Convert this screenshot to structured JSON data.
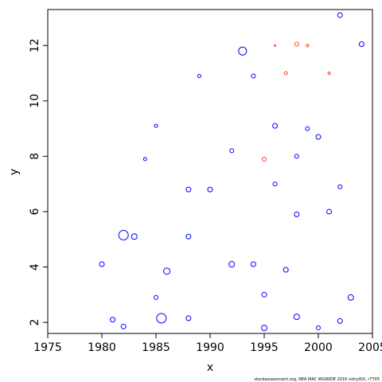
{
  "chart_data": {
    "type": "scatter",
    "title": "",
    "xlabel": "x",
    "ylabel": "y",
    "xlim": [
      1975,
      2005
    ],
    "ylim": [
      1.6,
      13.3
    ],
    "xticks": [
      1975,
      1980,
      1985,
      1990,
      1995,
      2000,
      2005
    ],
    "yticks": [
      2,
      4,
      6,
      8,
      10,
      12
    ],
    "grid": false,
    "legend": "none",
    "caption": "stockassessment.org, NEA MAC WGWIDE 2016 nohyIDX, r7705",
    "marker": "open-circle",
    "size_encoding": "residual magnitude",
    "colors": {
      "positive": "#0000ff",
      "negative": "#ff4020"
    },
    "series": [
      {
        "color_key": "positive",
        "points": [
          {
            "x": 1980,
            "y": 4.1,
            "s": 3.0
          },
          {
            "x": 1982,
            "y": 5.15,
            "s": 6.0
          },
          {
            "x": 1982,
            "y": 1.85,
            "s": 3.0
          },
          {
            "x": 1983,
            "y": 5.1,
            "s": 3.5
          },
          {
            "x": 1981,
            "y": 2.1,
            "s": 3.0
          },
          {
            "x": 1985.5,
            "y": 2.15,
            "s": 6.0
          },
          {
            "x": 1986,
            "y": 3.85,
            "s": 4.0
          },
          {
            "x": 1993,
            "y": 11.8,
            "s": 5.0
          },
          {
            "x": 2002,
            "y": 13.1,
            "s": 3.0
          },
          {
            "x": 2004,
            "y": 12.05,
            "s": 3.0
          },
          {
            "x": 1995,
            "y": 1.8,
            "s": 3.5
          },
          {
            "x": 2003,
            "y": 2.9,
            "s": 3.5
          },
          {
            "x": 1988,
            "y": 6.8,
            "s": 3.0
          },
          {
            "x": 1990,
            "y": 6.8,
            "s": 3.0
          },
          {
            "x": 1992,
            "y": 8.2,
            "s": 2.5
          },
          {
            "x": 2000,
            "y": 8.7,
            "s": 3.0
          },
          {
            "x": 1996,
            "y": 9.1,
            "s": 3.0
          },
          {
            "x": 1985,
            "y": 9.1,
            "s": 2.0
          },
          {
            "x": 1989,
            "y": 10.9,
            "s": 2.0
          },
          {
            "x": 1984,
            "y": 7.9,
            "s": 2.0
          },
          {
            "x": 2001,
            "y": 6.0,
            "s": 3.0
          },
          {
            "x": 1992,
            "y": 4.1,
            "s": 3.5
          },
          {
            "x": 1998,
            "y": 2.2,
            "s": 3.5
          },
          {
            "x": 1988,
            "y": 2.15,
            "s": 3.0
          },
          {
            "x": 1994,
            "y": 4.1,
            "s": 3.0
          },
          {
            "x": 1997,
            "y": 3.9,
            "s": 3.0
          },
          {
            "x": 2002,
            "y": 2.05,
            "s": 3.0
          },
          {
            "x": 2000,
            "y": 1.8,
            "s": 2.5
          },
          {
            "x": 1985,
            "y": 2.9,
            "s": 2.5
          },
          {
            "x": 1995,
            "y": 3.0,
            "s": 3.0
          },
          {
            "x": 1998,
            "y": 8.0,
            "s": 2.5
          },
          {
            "x": 1999,
            "y": 9.0,
            "s": 2.5
          },
          {
            "x": 1988,
            "y": 5.1,
            "s": 3.0
          },
          {
            "x": 1998,
            "y": 5.9,
            "s": 3.0
          },
          {
            "x": 1996,
            "y": 7.0,
            "s": 2.5
          },
          {
            "x": 1994,
            "y": 10.9,
            "s": 2.5
          },
          {
            "x": 2002,
            "y": 6.9,
            "s": 2.5
          }
        ]
      },
      {
        "color_key": "negative",
        "points": [
          {
            "x": 1998,
            "y": 12.05,
            "s": 2.5
          },
          {
            "x": 1995,
            "y": 7.9,
            "s": 2.5
          },
          {
            "x": 1997,
            "y": 11.0,
            "s": 2.0
          },
          {
            "x": 1999,
            "y": 12.0,
            "s": 1.5
          },
          {
            "x": 2001,
            "y": 11.0,
            "s": 1.5
          },
          {
            "x": 1996,
            "y": 12.0,
            "s": 1.0
          }
        ]
      }
    ]
  }
}
